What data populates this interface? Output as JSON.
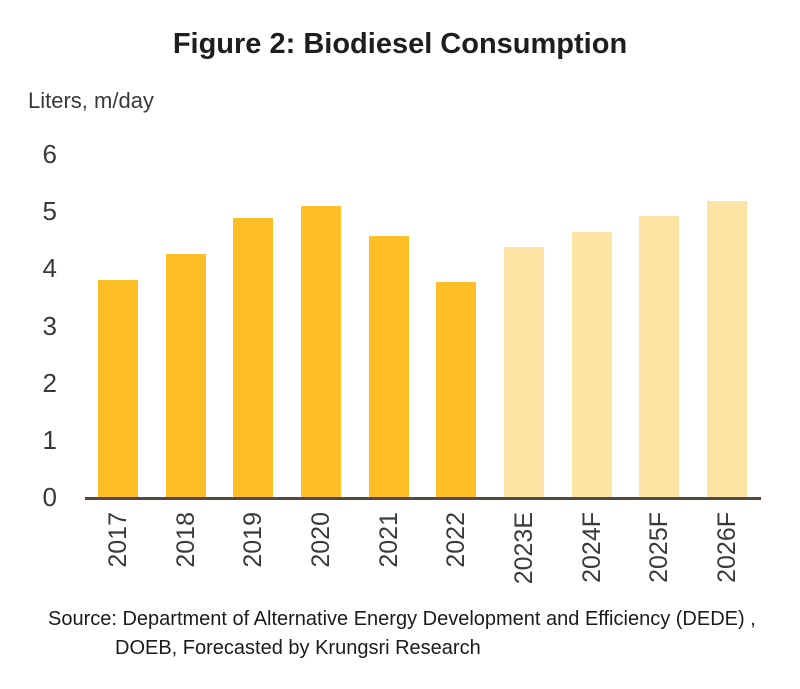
{
  "chart_data": {
    "type": "bar",
    "title": "Figure 2: Biodiesel Consumption",
    "ylabel": "Liters, m/day",
    "xlabel": "",
    "categories": [
      "2017",
      "2018",
      "2019",
      "2020",
      "2021",
      "2022",
      "2023E",
      "2024F",
      "2025F",
      "2026F"
    ],
    "values": [
      3.8,
      4.25,
      4.88,
      5.1,
      4.57,
      3.77,
      4.38,
      4.64,
      4.92,
      5.17
    ],
    "forecast_flags": [
      false,
      false,
      false,
      false,
      false,
      false,
      true,
      true,
      true,
      true
    ],
    "ylim": [
      0,
      6
    ],
    "yticks": [
      0,
      1,
      2,
      3,
      4,
      5,
      6
    ],
    "grid": false,
    "legend_position": "none",
    "colors": {
      "actual_bar": "#FDBE28",
      "forecast_bar": "#FDE3A4",
      "axis_line": "#544A42",
      "text": "#3B3838"
    }
  },
  "source_note": {
    "line1": "Source: Department of Alternative Energy Development and Efficiency (DEDE) ,",
    "line2": "DOEB, Forecasted by Krungsri Research"
  }
}
